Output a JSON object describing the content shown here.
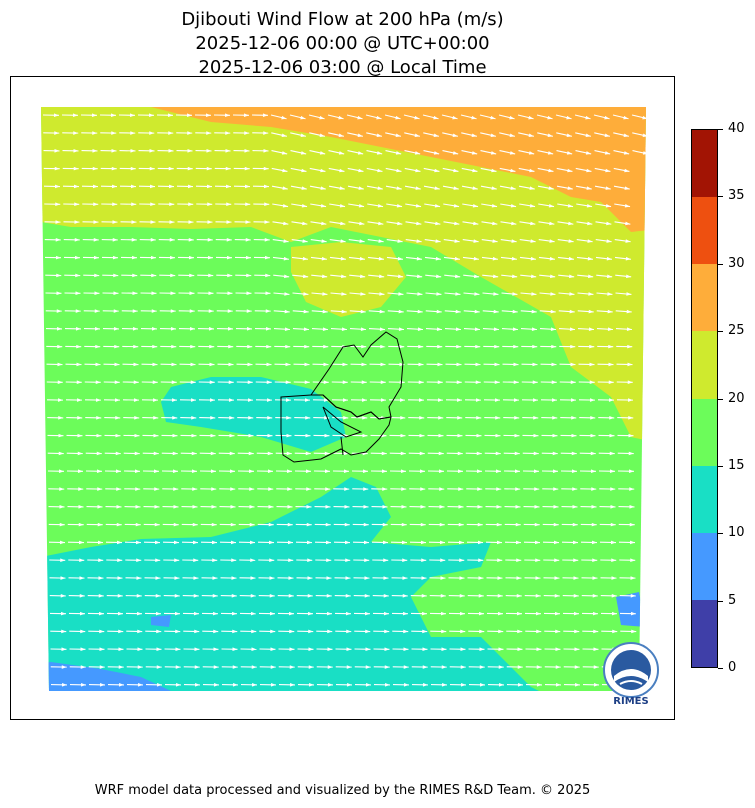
{
  "title": {
    "line1": "Djibouti Wind Flow at 200 hPa (m/s)",
    "line2": "2025-12-06 00:00 @ UTC+00:00",
    "line3": "2025-12-06 03:00 @ Local Time"
  },
  "colorbar": {
    "ticks": [
      "0",
      "5",
      "10",
      "15",
      "20",
      "25",
      "30",
      "35",
      "40"
    ],
    "levels": [
      {
        "min": 0,
        "max": 5,
        "color": "#3f3fa8"
      },
      {
        "min": 5,
        "max": 10,
        "color": "#4599ff"
      },
      {
        "min": 10,
        "max": 15,
        "color": "#19dfc5"
      },
      {
        "min": 15,
        "max": 20,
        "color": "#6cfc5a"
      },
      {
        "min": 20,
        "max": 25,
        "color": "#cfea2e"
      },
      {
        "min": 25,
        "max": 30,
        "color": "#fead3a"
      },
      {
        "min": 30,
        "max": 35,
        "color": "#ee5010"
      },
      {
        "min": 35,
        "max": 40,
        "color": "#a21404"
      }
    ]
  },
  "map": {
    "country": "Djibouti",
    "vector_color": "#ffffff",
    "vector_direction": "west-to-east"
  },
  "logo": {
    "text": "RIMES"
  },
  "footer": {
    "credit": "WRF model data processed and visualized by the RIMES R&D Team. © 2025"
  }
}
